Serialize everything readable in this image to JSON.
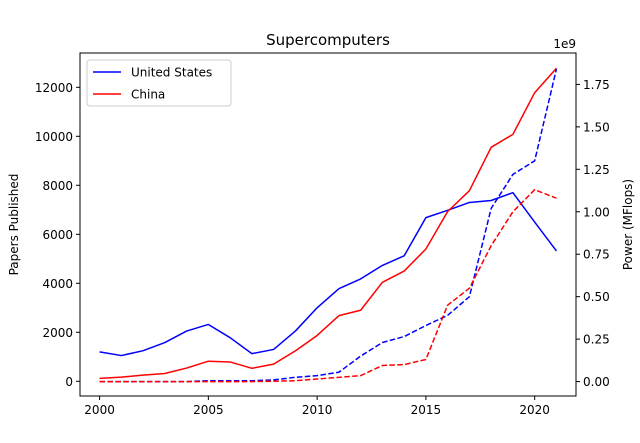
{
  "chart_data": {
    "type": "line",
    "title": "Supercomputers",
    "xlabel": "",
    "ylabel_left": "Papers Published",
    "ylabel_right": "Power (MFlops)",
    "right_axis_multiplier": "1e9",
    "x": [
      2000,
      2001,
      2002,
      2003,
      2004,
      2005,
      2006,
      2007,
      2008,
      2009,
      2010,
      2011,
      2012,
      2013,
      2014,
      2015,
      2016,
      2017,
      2018,
      2019,
      2020,
      2021
    ],
    "xlim": [
      1999.1,
      2021.9
    ],
    "x_ticks": [
      2000,
      2005,
      2010,
      2015,
      2020
    ],
    "ylim_left": [
      -600,
      13400
    ],
    "y_ticks_left": [
      0,
      2000,
      4000,
      6000,
      8000,
      10000,
      12000
    ],
    "ylim_right": [
      -0.085,
      1.935
    ],
    "y_ticks_right": [
      0.0,
      0.25,
      0.5,
      0.75,
      1.0,
      1.25,
      1.5,
      1.75
    ],
    "grid": false,
    "legend_placement": "top-left",
    "series": [
      {
        "name": "United States",
        "axis": "left",
        "style": "solid",
        "color": "#0000ff",
        "values": [
          1200,
          1050,
          1250,
          1580,
          2050,
          2320,
          1780,
          1130,
          1300,
          2050,
          3000,
          3780,
          4180,
          4730,
          5120,
          6680,
          6980,
          7300,
          7380,
          7700,
          6500,
          5320
        ]
      },
      {
        "name": "China",
        "axis": "left",
        "style": "solid",
        "color": "#ff0000",
        "values": [
          120,
          170,
          250,
          320,
          540,
          820,
          790,
          530,
          700,
          1240,
          1870,
          2680,
          2900,
          4040,
          4500,
          5400,
          6930,
          7780,
          9550,
          10080,
          11780,
          12780
        ]
      },
      {
        "name": "",
        "axis": "right",
        "style": "dashed",
        "color": "#0000ff",
        "values": [
          0.0,
          0.0,
          0.0,
          0.0,
          0.0,
          0.005,
          0.005,
          0.005,
          0.01,
          0.025,
          0.035,
          0.055,
          0.15,
          0.23,
          0.265,
          0.33,
          0.39,
          0.5,
          1.02,
          1.22,
          1.3,
          1.84
        ]
      },
      {
        "name": "",
        "axis": "right",
        "style": "dashed",
        "color": "#ff0000",
        "values": [
          0.0,
          0.0,
          0.0,
          0.0,
          0.0,
          0.0,
          0.0,
          0.0,
          0.002,
          0.005,
          0.015,
          0.025,
          0.035,
          0.095,
          0.1,
          0.13,
          0.45,
          0.55,
          0.8,
          1.0,
          1.13,
          1.08
        ]
      }
    ]
  }
}
